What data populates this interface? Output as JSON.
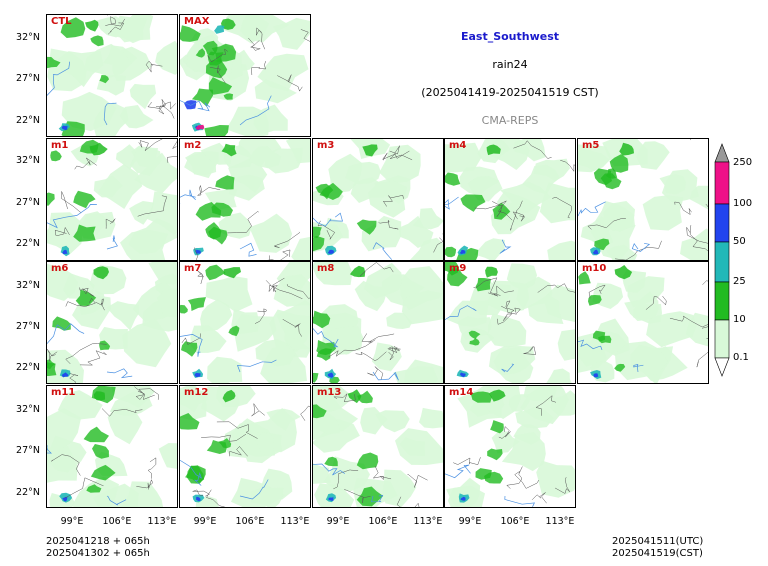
{
  "header": {
    "region": "East_Southwest",
    "variable": "rain24",
    "period": "(2025041419-2025041519 CST)",
    "model": "CMA-REPS"
  },
  "panels": [
    {
      "label": "CTL"
    },
    {
      "label": "MAX"
    },
    {
      "label": "m1"
    },
    {
      "label": "m2"
    },
    {
      "label": "m3"
    },
    {
      "label": "m4"
    },
    {
      "label": "m5"
    },
    {
      "label": "m6"
    },
    {
      "label": "m7"
    },
    {
      "label": "m8"
    },
    {
      "label": "m9"
    },
    {
      "label": "m10"
    },
    {
      "label": "m11"
    },
    {
      "label": "m12"
    },
    {
      "label": "m13"
    },
    {
      "label": "m14"
    }
  ],
  "axes": {
    "lat_ticks": [
      "32°N",
      "27°N",
      "22°N"
    ],
    "lon_ticks": [
      "99°E",
      "106°E",
      "113°E"
    ]
  },
  "colorbar": {
    "levels": [
      "0.1",
      "10",
      "25",
      "50",
      "100",
      "250"
    ],
    "colors": [
      "#d8f8d8",
      "#22bb22",
      "#22b8b8",
      "#2244ee",
      "#ee1188",
      "#999999"
    ]
  },
  "footer": {
    "init_1": "2025041218  +  065h",
    "init_2": "2025041302  +  065h",
    "valid_utc": "2025041511(UTC)",
    "valid_cst": "2025041519(CST)"
  }
}
